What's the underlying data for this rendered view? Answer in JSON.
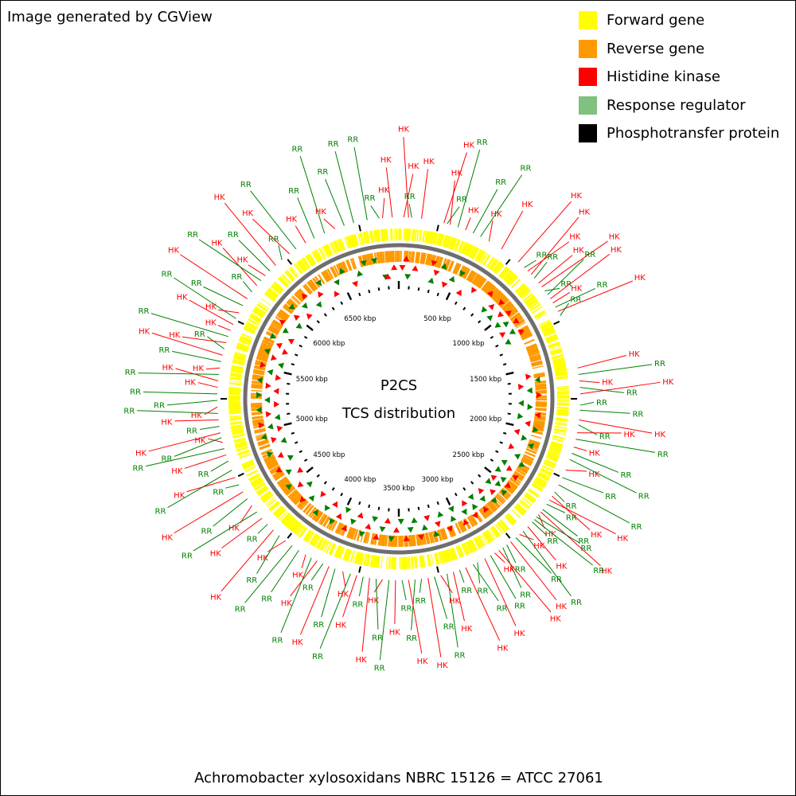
{
  "credit": "Image generated by CGView",
  "center": {
    "line1": "P2CS",
    "line2": "TCS distribution"
  },
  "footer": "Achromobacter xylosoxidans NBRC 15126 = ATCC 27061",
  "legend": [
    {
      "label": "Forward gene",
      "color": "#ffff00"
    },
    {
      "label": "Reverse gene",
      "color": "#ff9900"
    },
    {
      "label": "Histidine kinase",
      "color": "#ff0000"
    },
    {
      "label": "Response regulator",
      "color": "#80c080"
    },
    {
      "label": "Phosphotransfer protein",
      "color": "#000000"
    }
  ],
  "colors": {
    "hk": "#ff0000",
    "rr": "#008000",
    "hk_icon": "#ff0000",
    "rr_icon": "#008000",
    "backbone": "#808080",
    "tick": "#000000"
  },
  "genome": {
    "length_kbp": 7000,
    "major_tick_kbp": 500,
    "minor_tick_kbp": 100
  },
  "scale_labels": [
    "500 kbp",
    "1000 kbp",
    "1500 kbp",
    "2000 kbp",
    "2500 kbp",
    "3000 kbp",
    "3500 kbp",
    "4000 kbp",
    "4500 kbp",
    "5000 kbp",
    "5500 kbp",
    "6000 kbp",
    "6500 kbp"
  ],
  "features": [
    {
      "t": "RR",
      "kbp": 6880
    },
    {
      "t": "HK",
      "kbp": 6960
    },
    {
      "t": "RR",
      "kbp": 6805
    },
    {
      "t": "HK",
      "kbp": 6900
    },
    {
      "t": "HK",
      "kbp": 30
    },
    {
      "t": "HK",
      "kbp": 60
    },
    {
      "t": "RR",
      "kbp": 80
    },
    {
      "t": "HK",
      "kbp": 140
    },
    {
      "t": "HK",
      "kbp": 280
    },
    {
      "t": "RR",
      "kbp": 300
    },
    {
      "t": "HK",
      "kbp": 320
    },
    {
      "t": "RR",
      "kbp": 370
    },
    {
      "t": "HK",
      "kbp": 420
    },
    {
      "t": "RR",
      "kbp": 470
    },
    {
      "t": "RR",
      "kbp": 520
    },
    {
      "t": "HK",
      "kbp": 580
    },
    {
      "t": "HK",
      "kbp": 670
    },
    {
      "t": "HK",
      "kbp": 800
    },
    {
      "t": "RR",
      "kbp": 850
    },
    {
      "t": "HK",
      "kbp": 880
    },
    {
      "t": "HK",
      "kbp": 910
    },
    {
      "t": "RR",
      "kbp": 940
    },
    {
      "t": "HK",
      "kbp": 980
    },
    {
      "t": "HK",
      "kbp": 1010
    },
    {
      "t": "RR",
      "kbp": 1040
    },
    {
      "t": "RR",
      "kbp": 1070
    },
    {
      "t": "HK",
      "kbp": 1100
    },
    {
      "t": "HK",
      "kbp": 1130
    },
    {
      "t": "RR",
      "kbp": 1160
    },
    {
      "t": "HK",
      "kbp": 1190
    },
    {
      "t": "RR",
      "kbp": 1220
    },
    {
      "t": "HK",
      "kbp": 1560
    },
    {
      "t": "RR",
      "kbp": 1600
    },
    {
      "t": "HK",
      "kbp": 1640
    },
    {
      "t": "RR",
      "kbp": 1680
    },
    {
      "t": "HK",
      "kbp": 1720
    },
    {
      "t": "RR",
      "kbp": 1790
    },
    {
      "t": "RR",
      "kbp": 1820
    },
    {
      "t": "HK",
      "kbp": 1880
    },
    {
      "t": "RR",
      "kbp": 1910
    },
    {
      "t": "HK",
      "kbp": 1960
    },
    {
      "t": "RR",
      "kbp": 2000
    },
    {
      "t": "HK",
      "kbp": 2050
    },
    {
      "t": "RR",
      "kbp": 2090
    },
    {
      "t": "RR",
      "kbp": 2130
    },
    {
      "t": "HK",
      "kbp": 2200
    },
    {
      "t": "RR",
      "kbp": 2250
    },
    {
      "t": "RR",
      "kbp": 2300
    },
    {
      "t": "RR",
      "kbp": 2350
    },
    {
      "t": "HK",
      "kbp": 2380
    },
    {
      "t": "HK",
      "kbp": 2410
    },
    {
      "t": "RR",
      "kbp": 2440
    },
    {
      "t": "RR",
      "kbp": 2480
    },
    {
      "t": "HK",
      "kbp": 2500
    },
    {
      "t": "HK",
      "kbp": 2520
    },
    {
      "t": "RR",
      "kbp": 2540
    },
    {
      "t": "RR",
      "kbp": 2560
    },
    {
      "t": "RR",
      "kbp": 2580
    },
    {
      "t": "HK",
      "kbp": 2620
    },
    {
      "t": "RR",
      "kbp": 2660
    },
    {
      "t": "HK",
      "kbp": 2690
    },
    {
      "t": "RR",
      "kbp": 2720
    },
    {
      "t": "HK",
      "kbp": 2760
    },
    {
      "t": "RR",
      "kbp": 2790
    },
    {
      "t": "RR",
      "kbp": 2820
    },
    {
      "t": "HK",
      "kbp": 2850
    },
    {
      "t": "HK",
      "kbp": 2880
    },
    {
      "t": "RR",
      "kbp": 2910
    },
    {
      "t": "HK",
      "kbp": 2950
    },
    {
      "t": "RR",
      "kbp": 3000
    },
    {
      "t": "RR",
      "kbp": 3030
    },
    {
      "t": "HK",
      "kbp": 3080
    },
    {
      "t": "RR",
      "kbp": 3120
    },
    {
      "t": "HK",
      "kbp": 3160
    },
    {
      "t": "RR",
      "kbp": 3200
    },
    {
      "t": "HK",
      "kbp": 3240
    },
    {
      "t": "RR",
      "kbp": 3280
    },
    {
      "t": "HK",
      "kbp": 3320
    },
    {
      "t": "RR",
      "kbp": 3360
    },
    {
      "t": "RR",
      "kbp": 3400
    },
    {
      "t": "HK",
      "kbp": 3440
    },
    {
      "t": "RR",
      "kbp": 3480
    },
    {
      "t": "HK",
      "kbp": 3520
    },
    {
      "t": "RR",
      "kbp": 3560
    },
    {
      "t": "HK",
      "kbp": 3600
    },
    {
      "t": "RR",
      "kbp": 3640
    },
    {
      "t": "HK",
      "kbp": 3680
    },
    {
      "t": "RR",
      "kbp": 3720
    },
    {
      "t": "HK",
      "kbp": 3760
    },
    {
      "t": "RR",
      "kbp": 3800
    },
    {
      "t": "HK",
      "kbp": 3850
    },
    {
      "t": "RR",
      "kbp": 3900
    },
    {
      "t": "HK",
      "kbp": 3940
    },
    {
      "t": "RR",
      "kbp": 3980
    },
    {
      "t": "HK",
      "kbp": 4020
    },
    {
      "t": "RR",
      "kbp": 4060
    },
    {
      "t": "HK",
      "kbp": 4100
    },
    {
      "t": "RR",
      "kbp": 4150
    },
    {
      "t": "RR",
      "kbp": 4200
    },
    {
      "t": "HK",
      "kbp": 4250
    },
    {
      "t": "RR",
      "kbp": 4300
    },
    {
      "t": "HK",
      "kbp": 4350
    },
    {
      "t": "RR",
      "kbp": 4400
    },
    {
      "t": "HK",
      "kbp": 4450
    },
    {
      "t": "RR",
      "kbp": 4500
    },
    {
      "t": "HK",
      "kbp": 4550
    },
    {
      "t": "RR",
      "kbp": 4600
    },
    {
      "t": "HK",
      "kbp": 4650
    },
    {
      "t": "RR",
      "kbp": 4700
    },
    {
      "t": "HK",
      "kbp": 4750
    },
    {
      "t": "RR",
      "kbp": 4800
    },
    {
      "t": "RR",
      "kbp": 4860
    },
    {
      "t": "HK",
      "kbp": 4900
    },
    {
      "t": "RR",
      "kbp": 4940
    },
    {
      "t": "HK",
      "kbp": 4980
    },
    {
      "t": "RR",
      "kbp": 5010
    },
    {
      "t": "HK",
      "kbp": 5040
    },
    {
      "t": "RR",
      "kbp": 5080
    },
    {
      "t": "HK",
      "kbp": 5120
    },
    {
      "t": "RR",
      "kbp": 5160
    },
    {
      "t": "HK",
      "kbp": 5200
    },
    {
      "t": "RR",
      "kbp": 5240
    },
    {
      "t": "RR",
      "kbp": 5280
    },
    {
      "t": "HK",
      "kbp": 5320
    },
    {
      "t": "HK",
      "kbp": 5360
    },
    {
      "t": "RR",
      "kbp": 5400
    },
    {
      "t": "HK",
      "kbp": 5440
    },
    {
      "t": "RR",
      "kbp": 5480
    },
    {
      "t": "HK",
      "kbp": 5520
    },
    {
      "t": "RR",
      "kbp": 5560
    },
    {
      "t": "HK",
      "kbp": 5600
    },
    {
      "t": "RR",
      "kbp": 5640
    },
    {
      "t": "HK",
      "kbp": 5680
    },
    {
      "t": "HK",
      "kbp": 5720
    },
    {
      "t": "RR",
      "kbp": 5760
    },
    {
      "t": "HK",
      "kbp": 5800
    },
    {
      "t": "RR",
      "kbp": 5850
    },
    {
      "t": "HK",
      "kbp": 5900
    },
    {
      "t": "RR",
      "kbp": 5950
    },
    {
      "t": "HK",
      "kbp": 6000
    },
    {
      "t": "RR",
      "kbp": 6040
    },
    {
      "t": "HK",
      "kbp": 6080
    },
    {
      "t": "RR",
      "kbp": 6120
    },
    {
      "t": "HK",
      "kbp": 6170
    },
    {
      "t": "RR",
      "kbp": 6220
    },
    {
      "t": "HK",
      "kbp": 6280
    },
    {
      "t": "RR",
      "kbp": 6330
    },
    {
      "t": "HK",
      "kbp": 6400
    },
    {
      "t": "RR",
      "kbp": 6460
    },
    {
      "t": "RR",
      "kbp": 6530
    },
    {
      "t": "HK",
      "kbp": 6600
    },
    {
      "t": "RR",
      "kbp": 6660
    },
    {
      "t": "RR",
      "kbp": 6720
    }
  ]
}
